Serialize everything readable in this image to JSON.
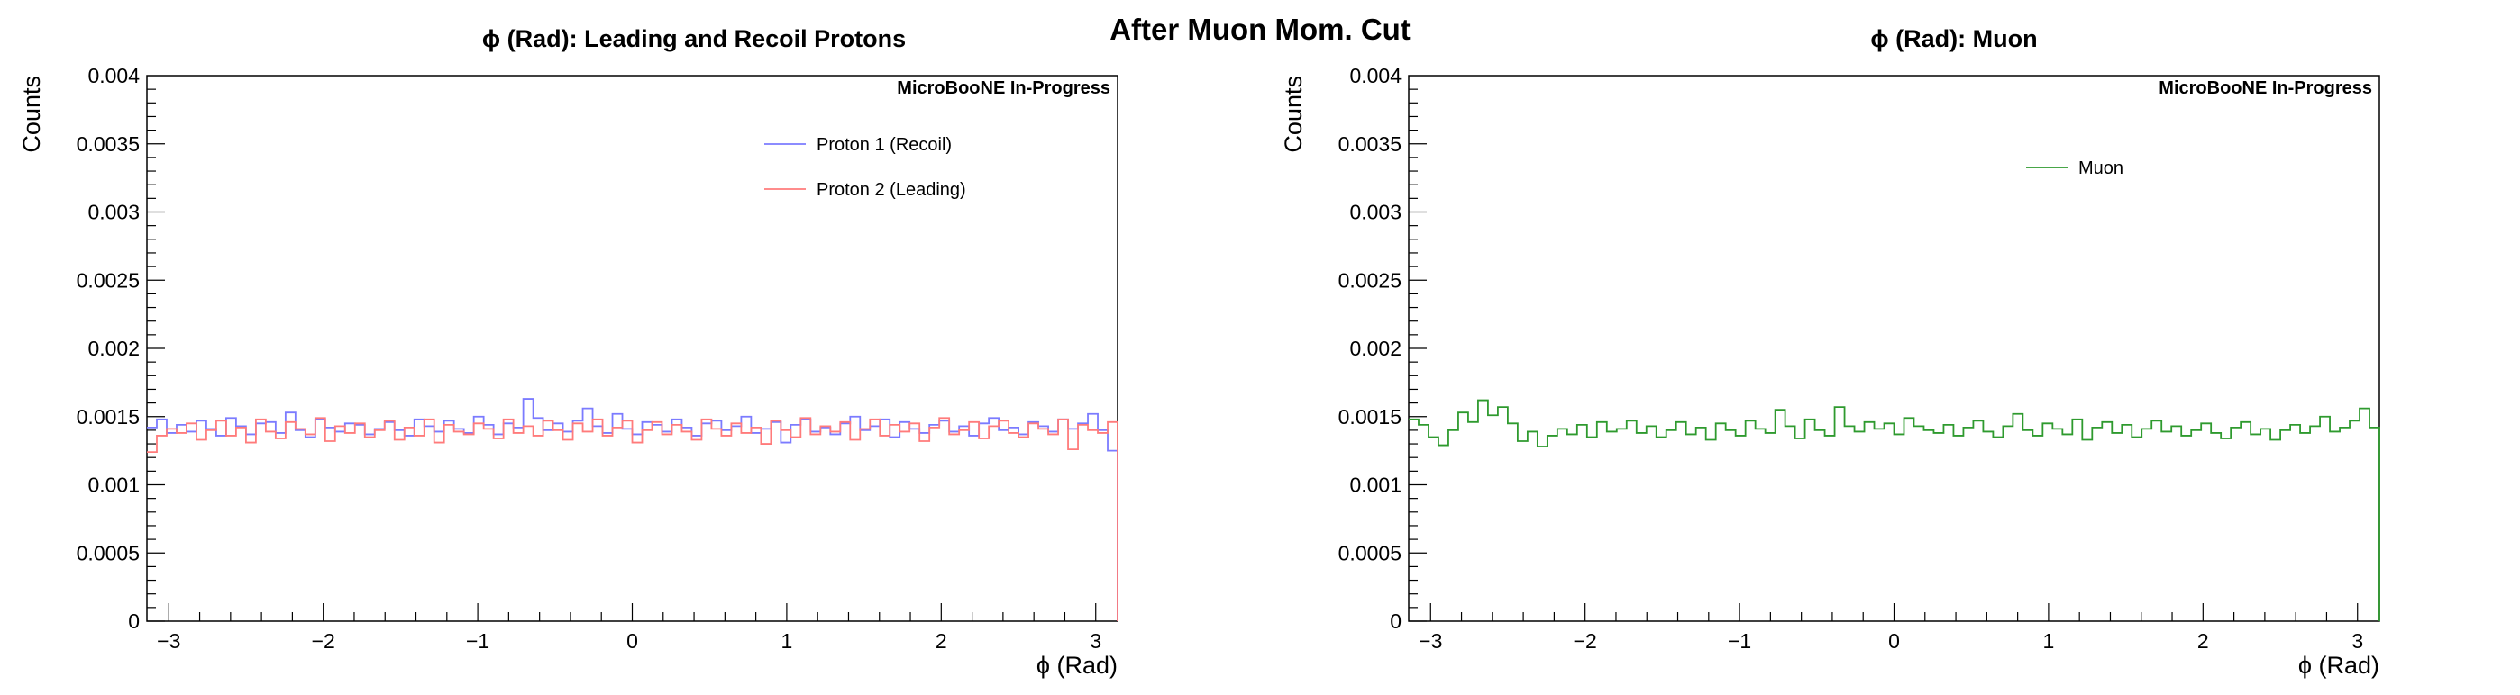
{
  "figure": {
    "suptitle": "After Muon Mom. Cut"
  },
  "chart_data": [
    {
      "type": "line",
      "drawstyle": "step",
      "title": "ϕ (Rad): Leading and Recoil Protons",
      "xlabel": "ϕ (Rad)",
      "ylabel": "Counts",
      "watermark": "MicroBooNE In-Progress",
      "xlim": [
        -3.1416,
        3.1416
      ],
      "ylim": [
        0,
        0.004
      ],
      "x_ticks": [
        -3,
        -2,
        -1,
        0,
        1,
        2,
        3
      ],
      "y_ticks": [
        "0",
        "0.0005",
        "0.001",
        "0.0015",
        "0.002",
        "0.0025",
        "0.003",
        "0.0035",
        "0.004"
      ],
      "y_tick_values": [
        0,
        0.0005,
        0.001,
        0.0015,
        0.002,
        0.0025,
        0.003,
        0.0035,
        0.004
      ],
      "legend_position": "top-right",
      "grid": false,
      "series": [
        {
          "name": "Proton 1 (Recoil)",
          "color": "#7b7bff",
          "values": [
            0.00142,
            0.00148,
            0.00138,
            0.00144,
            0.00139,
            0.00147,
            0.00141,
            0.00136,
            0.00149,
            0.00143,
            0.00137,
            0.00145,
            0.00146,
            0.00138,
            0.00153,
            0.0014,
            0.00135,
            0.00148,
            0.00142,
            0.00139,
            0.00145,
            0.00144,
            0.00137,
            0.00141,
            0.00146,
            0.0014,
            0.00136,
            0.00148,
            0.00143,
            0.00139,
            0.00147,
            0.00141,
            0.00138,
            0.0015,
            0.00144,
            0.00137,
            0.00145,
            0.00142,
            0.00163,
            0.00149,
            0.0014,
            0.00145,
            0.00139,
            0.00147,
            0.00156,
            0.00143,
            0.00138,
            0.00152,
            0.00141,
            0.00137,
            0.00146,
            0.00144,
            0.00139,
            0.00148,
            0.00142,
            0.00136,
            0.00145,
            0.00147,
            0.0014,
            0.00143,
            0.0015,
            0.00138,
            0.00141,
            0.00146,
            0.00131,
            0.00144,
            0.00148,
            0.00139,
            0.00142,
            0.00137,
            0.00145,
            0.0015,
            0.0014,
            0.00143,
            0.00148,
            0.00135,
            0.00146,
            0.00141,
            0.00138,
            0.00144,
            0.00147,
            0.00139,
            0.00143,
            0.00136,
            0.00145,
            0.00149,
            0.0014,
            0.00142,
            0.00137,
            0.00146,
            0.00143,
            0.00139,
            0.00148,
            0.00141,
            0.00145,
            0.00152,
            0.0014,
            0.00125
          ]
        },
        {
          "name": "Proton 2 (Leading)",
          "color": "#ff7b7b",
          "values": [
            0.00124,
            0.00136,
            0.00141,
            0.00138,
            0.00145,
            0.00133,
            0.0014,
            0.00147,
            0.00136,
            0.00142,
            0.00131,
            0.00148,
            0.00139,
            0.00134,
            0.00146,
            0.00141,
            0.00137,
            0.00149,
            0.00132,
            0.00143,
            0.00138,
            0.00145,
            0.00135,
            0.0014,
            0.00147,
            0.00133,
            0.00142,
            0.00136,
            0.00148,
            0.00131,
            0.00144,
            0.00139,
            0.00137,
            0.00145,
            0.00141,
            0.00134,
            0.00148,
            0.00138,
            0.00143,
            0.00136,
            0.00147,
            0.0014,
            0.00133,
            0.00145,
            0.00139,
            0.00148,
            0.00136,
            0.00142,
            0.00147,
            0.00131,
            0.0014,
            0.00146,
            0.00137,
            0.00144,
            0.00139,
            0.00133,
            0.00148,
            0.00141,
            0.00136,
            0.00145,
            0.00138,
            0.00142,
            0.0013,
            0.00147,
            0.0014,
            0.00135,
            0.00149,
            0.00137,
            0.00143,
            0.00139,
            0.00146,
            0.00133,
            0.00141,
            0.00148,
            0.00136,
            0.00144,
            0.00139,
            0.00145,
            0.00132,
            0.00142,
            0.00149,
            0.00137,
            0.0014,
            0.00146,
            0.00134,
            0.00143,
            0.00147,
            0.00138,
            0.00135,
            0.00145,
            0.00141,
            0.00137,
            0.00148,
            0.00126,
            0.00144,
            0.0014,
            0.00138,
            0.00146
          ]
        }
      ]
    },
    {
      "type": "line",
      "drawstyle": "step",
      "title": "ϕ (Rad): Muon",
      "xlabel": "ϕ (Rad)",
      "ylabel": "Counts",
      "watermark": "MicroBooNE In-Progress",
      "xlim": [
        -3.1416,
        3.1416
      ],
      "ylim": [
        0,
        0.004
      ],
      "x_ticks": [
        -3,
        -2,
        -1,
        0,
        1,
        2,
        3
      ],
      "y_ticks": [
        "0",
        "0.0005",
        "0.001",
        "0.0015",
        "0.002",
        "0.0025",
        "0.003",
        "0.0035",
        "0.004"
      ],
      "y_tick_values": [
        0,
        0.0005,
        0.001,
        0.0015,
        0.002,
        0.0025,
        0.003,
        0.0035,
        0.004
      ],
      "legend_position": "top-right",
      "grid": false,
      "series": [
        {
          "name": "Muon",
          "color": "#2e9a2e",
          "values": [
            0.00148,
            0.00144,
            0.00135,
            0.00129,
            0.0014,
            0.00153,
            0.00146,
            0.00162,
            0.00151,
            0.00157,
            0.00145,
            0.00132,
            0.00139,
            0.00128,
            0.00136,
            0.00141,
            0.00137,
            0.00144,
            0.00135,
            0.00146,
            0.00139,
            0.00141,
            0.00147,
            0.00138,
            0.00143,
            0.00135,
            0.0014,
            0.00146,
            0.00137,
            0.00142,
            0.00133,
            0.00145,
            0.0014,
            0.00136,
            0.00147,
            0.00141,
            0.00138,
            0.00155,
            0.00143,
            0.00134,
            0.00148,
            0.0014,
            0.00136,
            0.00157,
            0.00143,
            0.00139,
            0.00146,
            0.00141,
            0.00145,
            0.00137,
            0.00149,
            0.00143,
            0.0014,
            0.00138,
            0.00144,
            0.00136,
            0.00142,
            0.00147,
            0.00139,
            0.00135,
            0.00143,
            0.00152,
            0.0014,
            0.00136,
            0.00145,
            0.00141,
            0.00137,
            0.00148,
            0.00133,
            0.00142,
            0.00146,
            0.00138,
            0.00144,
            0.00135,
            0.00141,
            0.00147,
            0.00139,
            0.00143,
            0.00136,
            0.0014,
            0.00145,
            0.00138,
            0.00134,
            0.00142,
            0.00146,
            0.00137,
            0.00141,
            0.00133,
            0.0014,
            0.00144,
            0.00138,
            0.00143,
            0.0015,
            0.00139,
            0.00142,
            0.00147,
            0.00156,
            0.00142
          ]
        }
      ]
    }
  ]
}
